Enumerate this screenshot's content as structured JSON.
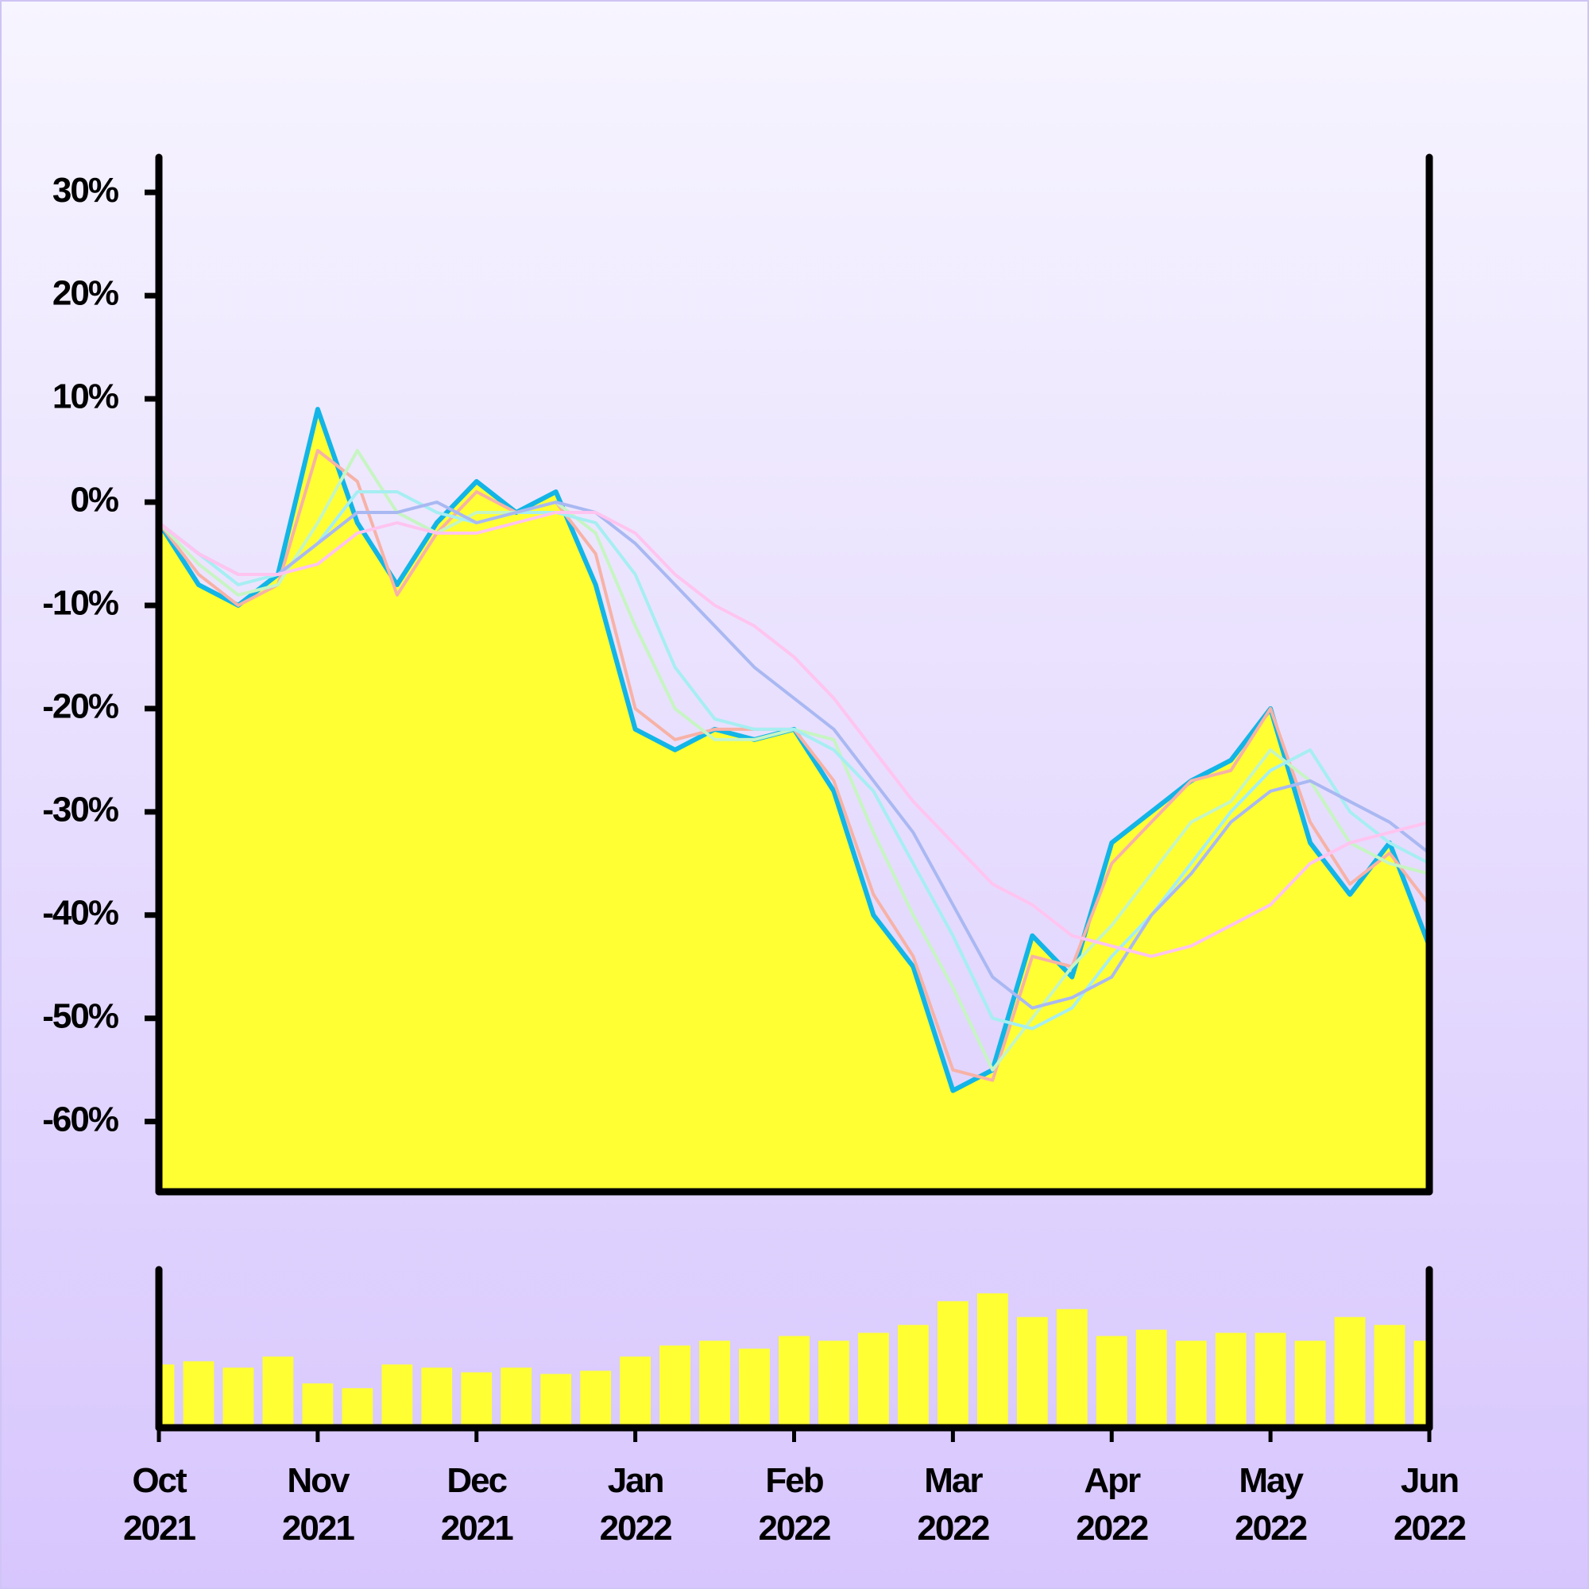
{
  "chart_data": [
    {
      "type": "line",
      "x": [
        0,
        0.25,
        0.5,
        0.75,
        1,
        1.25,
        1.5,
        1.75,
        2,
        2.25,
        2.5,
        2.75,
        3,
        3.25,
        3.5,
        3.75,
        4,
        4.25,
        4.5,
        4.75,
        5,
        5.25,
        5.5,
        5.75,
        6,
        6.25,
        6.5,
        6.75,
        7,
        7.25,
        7.5,
        7.75,
        8
      ],
      "xlim": [
        0,
        8
      ],
      "ylim": [
        -66.8,
        33.4
      ],
      "yticks": [
        {
          "value": 30,
          "label": "30%"
        },
        {
          "value": 20,
          "label": "20%"
        },
        {
          "value": 10,
          "label": "10%"
        },
        {
          "value": 0,
          "label": "0%"
        },
        {
          "value": -10,
          "label": "-10%"
        },
        {
          "value": -20,
          "label": "-20%"
        },
        {
          "value": -30,
          "label": "-30%"
        },
        {
          "value": -40,
          "label": "-40%"
        },
        {
          "value": -50,
          "label": "-50%"
        },
        {
          "value": -60,
          "label": "-60%"
        }
      ],
      "series": [
        {
          "color": "#12b5e6",
          "fill": "#ffff33",
          "values": [
            -2,
            -8,
            -10,
            -7,
            9,
            -2,
            -8,
            -2,
            2,
            -1,
            1,
            -8,
            -22,
            -24,
            -22,
            -23,
            -22,
            -28,
            -40,
            -45,
            -57,
            -55,
            -42,
            -46,
            -33,
            -30,
            -27,
            -25,
            -20,
            -33,
            -38,
            -33,
            -43
          ]
        },
        {
          "color": "#f7b2a6",
          "values": [
            -2,
            -7,
            -10,
            -8,
            5,
            2,
            -9,
            -3,
            1,
            -1,
            0,
            -5,
            -20,
            -23,
            -22,
            -22,
            -22,
            -27,
            -38,
            -44,
            -55,
            -56,
            -44,
            -45,
            -35,
            -31,
            -27,
            -26,
            -20,
            -31,
            -37,
            -34,
            -39
          ]
        },
        {
          "color": "#c6f5c2",
          "values": [
            -2,
            -6,
            -9,
            -8,
            -2,
            5,
            -1,
            -3,
            -1,
            -1,
            0,
            -3,
            -12,
            -20,
            -23,
            -23,
            -22,
            -23,
            -32,
            -40,
            -47,
            -55,
            -50,
            -45,
            -41,
            -36,
            -31,
            -29,
            -24,
            -27,
            -33,
            -35,
            -36
          ]
        },
        {
          "color": "#a6eef2",
          "values": [
            -2,
            -5,
            -8,
            -7,
            -4,
            1,
            1,
            -1,
            -2,
            -1,
            -1,
            -2,
            -7,
            -16,
            -21,
            -22,
            -22,
            -24,
            -28,
            -35,
            -42,
            -50,
            -51,
            -49,
            -44,
            -40,
            -35,
            -30,
            -26,
            -24,
            -30,
            -33,
            -35
          ]
        },
        {
          "color": "#a9b8f2",
          "values": [
            -2,
            -5,
            -7,
            -7,
            -4,
            -1,
            -1,
            0,
            -2,
            -1,
            0,
            -1,
            -4,
            -8,
            -12,
            -16,
            -19,
            -22,
            -27,
            -32,
            -39,
            -46,
            -49,
            -48,
            -46,
            -40,
            -36,
            -31,
            -28,
            -27,
            -29,
            -31,
            -34
          ]
        },
        {
          "color": "#ffc4f0",
          "values": [
            -2,
            -5,
            -7,
            -7,
            -6,
            -3,
            -2,
            -3,
            -3,
            -2,
            -1,
            -1,
            -3,
            -7,
            -10,
            -12,
            -15,
            -19,
            -24,
            -29,
            -33,
            -37,
            -39,
            -42,
            -43,
            -44,
            -43,
            -41,
            -39,
            -35,
            -33,
            -32,
            -31
          ]
        }
      ]
    },
    {
      "type": "bar",
      "x": [
        0,
        0.25,
        0.5,
        0.75,
        1,
        1.25,
        1.5,
        1.75,
        2,
        2.25,
        2.5,
        2.75,
        3,
        3.25,
        3.5,
        3.75,
        4,
        4.25,
        4.5,
        4.75,
        5,
        5.25,
        5.5,
        5.75,
        6,
        6.25,
        6.5,
        6.75,
        7,
        7.25,
        7.5,
        7.75,
        8
      ],
      "xlim": [
        0,
        8
      ],
      "ylim": [
        0,
        100
      ],
      "color": "#ffff33",
      "values": [
        40,
        42,
        38,
        45,
        28,
        25,
        40,
        38,
        35,
        38,
        34,
        36,
        45,
        52,
        55,
        50,
        58,
        55,
        60,
        65,
        80,
        85,
        70,
        75,
        58,
        62,
        55,
        60,
        60,
        55,
        70,
        65,
        55
      ],
      "xticks": [
        {
          "value": 0,
          "label": "Oct 2021"
        },
        {
          "value": 1,
          "label": "Nov 2021"
        },
        {
          "value": 2,
          "label": "Dec 2021"
        },
        {
          "value": 3,
          "label": "Jan 2022"
        },
        {
          "value": 4,
          "label": "Feb 2022"
        },
        {
          "value": 5,
          "label": "Mar 2022"
        },
        {
          "value": 6,
          "label": "Apr 2022"
        },
        {
          "value": 7,
          "label": "May 2022"
        },
        {
          "value": 8,
          "label": "Jun 2022"
        }
      ]
    }
  ]
}
